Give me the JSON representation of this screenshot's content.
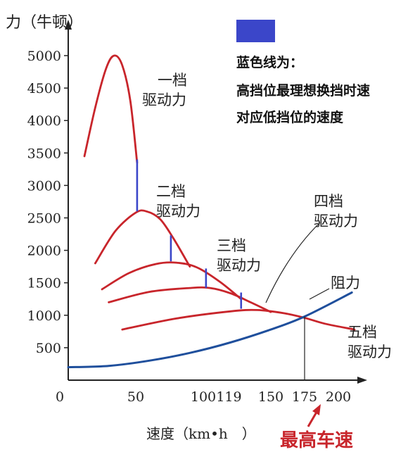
{
  "chart_data": {
    "type": "line",
    "ylabel": "力（牛顿）",
    "xlabel": "速度（km•h　）",
    "xlim": [
      0,
      210
    ],
    "ylim": [
      0,
      5200
    ],
    "x_ticks": [
      0,
      50,
      100,
      119,
      150,
      175,
      200
    ],
    "x_tick_labels": [
      "0",
      "50",
      "100",
      "119",
      "150",
      "175",
      "200"
    ],
    "y_ticks": [
      500,
      1000,
      1500,
      2000,
      2500,
      3000,
      3500,
      4000,
      4500,
      5000
    ],
    "y_tick_labels": [
      "500",
      "1000",
      "1500",
      "2000",
      "2500",
      "3000",
      "3500",
      "4000",
      "4500",
      "5000"
    ],
    "legend": {
      "swatch_color": "#3b46c9",
      "lines": [
        "蓝色线为：",
        "高挡位最理想换挡时速",
        "对应低挡位的速度"
      ]
    },
    "series": [
      {
        "name": "一档驱动力",
        "color": "#c8252b",
        "label": [
          "一档",
          "驱动力"
        ],
        "points": [
          [
            12,
            3450
          ],
          [
            20,
            4200
          ],
          [
            28,
            4800
          ],
          [
            34,
            5000
          ],
          [
            40,
            4850
          ],
          [
            46,
            4300
          ],
          [
            51,
            3350
          ]
        ]
      },
      {
        "name": "二档驱动力",
        "color": "#c8252b",
        "label": [
          "二档",
          "驱动力"
        ],
        "points": [
          [
            20,
            1800
          ],
          [
            35,
            2300
          ],
          [
            50,
            2580
          ],
          [
            58,
            2600
          ],
          [
            68,
            2480
          ],
          [
            78,
            2180
          ],
          [
            90,
            1750
          ]
        ]
      },
      {
        "name": "三档驱动力",
        "color": "#c8252b",
        "label": [
          "三档",
          "驱动力"
        ],
        "points": [
          [
            25,
            1400
          ],
          [
            45,
            1650
          ],
          [
            65,
            1790
          ],
          [
            80,
            1810
          ],
          [
            95,
            1740
          ],
          [
            112,
            1520
          ],
          [
            128,
            1250
          ]
        ]
      },
      {
        "name": "四档驱动力",
        "color": "#c8252b",
        "label": [
          "四档",
          "驱动力"
        ],
        "points": [
          [
            30,
            1200
          ],
          [
            60,
            1360
          ],
          [
            90,
            1420
          ],
          [
            105,
            1420
          ],
          [
            120,
            1340
          ],
          [
            135,
            1200
          ],
          [
            150,
            1050
          ]
        ]
      },
      {
        "name": "五档驱动力",
        "color": "#c8252b",
        "label": [
          "五档",
          "驱动力"
        ],
        "points": [
          [
            40,
            780
          ],
          [
            80,
            950
          ],
          [
            120,
            1060
          ],
          [
            140,
            1080
          ],
          [
            160,
            1030
          ],
          [
            175,
            960
          ],
          [
            190,
            870
          ],
          [
            212,
            780
          ]
        ]
      },
      {
        "name": "阻力",
        "color": "#1f4f9c",
        "label": [
          "阻力"
        ],
        "points": [
          [
            0,
            200
          ],
          [
            30,
            220
          ],
          [
            60,
            300
          ],
          [
            90,
            420
          ],
          [
            120,
            580
          ],
          [
            150,
            780
          ],
          [
            175,
            980
          ],
          [
            210,
            1350
          ]
        ]
      }
    ],
    "shift_markers": [
      {
        "x": 51,
        "y_low": 2600,
        "y_high": 3400
      },
      {
        "x": 76,
        "y_low": 1830,
        "y_high": 2230
      },
      {
        "x": 102,
        "y_low": 1420,
        "y_high": 1720
      },
      {
        "x": 128,
        "y_low": 1100,
        "y_high": 1350
      }
    ],
    "max_speed": {
      "x": 175,
      "y": 980,
      "label": "最高车速",
      "color": "#c8252b"
    }
  }
}
